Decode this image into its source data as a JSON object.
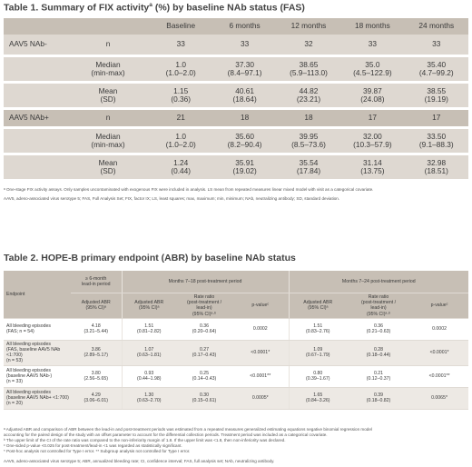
{
  "table1": {
    "title": "Table 1. Summary of FIX activity",
    "title_sup": "a",
    "title_suffix": " (%) by baseline NAb status (FAS)",
    "columns": [
      "Baseline",
      "6 months",
      "12 months",
      "18 months",
      "24 months"
    ],
    "groups": [
      {
        "label": "AAV5 NAb-",
        "n": [
          "33",
          "33",
          "32",
          "33",
          "33"
        ],
        "median_label": [
          "Median",
          "(min-max)"
        ],
        "median": [
          [
            "1.0",
            "(1.0–2.0)"
          ],
          [
            "37.30",
            "(8.4–97.1)"
          ],
          [
            "38.65",
            "(5.9–113.0)"
          ],
          [
            "35.0",
            "(4.5–122.9)"
          ],
          [
            "35.40",
            "(4.7–99.2)"
          ]
        ],
        "mean_label": [
          "Mean",
          "(SD)"
        ],
        "mean": [
          [
            "1.15",
            "(0.36)"
          ],
          [
            "40.61",
            "(18.64)"
          ],
          [
            "44.82",
            "(23.21)"
          ],
          [
            "39.87",
            "(24.08)"
          ],
          [
            "38.55",
            "(19.19)"
          ]
        ]
      },
      {
        "label": "AAV5 NAb+",
        "n": [
          "21",
          "18",
          "18",
          "17",
          "17"
        ],
        "median_label": [
          "Median",
          "(min-max)"
        ],
        "median": [
          [
            "1.0",
            "(1.0–2.0)"
          ],
          [
            "35.60",
            "(8.2–90.4)"
          ],
          [
            "39.95",
            "(8.5–73.6)"
          ],
          [
            "32.00",
            "(10.3–57.9)"
          ],
          [
            "33.50",
            "(9.1–88.3)"
          ]
        ],
        "mean_label": [
          "Mean",
          "(SD)"
        ],
        "mean": [
          [
            "1.24",
            "(0.44)"
          ],
          [
            "35.91",
            "(19.02)"
          ],
          [
            "35.54",
            "(17.84)"
          ],
          [
            "31.14",
            "(13.75)"
          ],
          [
            "32.98",
            "(18.51)"
          ]
        ]
      }
    ],
    "footnote1": "ᵃ One-stage FIX activity assays. Only samples uncontaminated with exogenous FIX were included in analysis. LS mean from repeated measures linear mixed model with visit as a categorical covariate.",
    "footnote2": "AAV5, adeno-associated virus serotype 5; FAS, Full Analysis Set; FIX, factor IX; LS, least squares; max, maximum; min, minimum; NAb, neutralizing antibody; SD, standard deviation."
  },
  "table2": {
    "title": "Table 2. HOPE-B primary endpoint (ABR) by baseline NAb status",
    "head_lead": [
      "≥ 6-month",
      "lead-in period"
    ],
    "head_p1": "Months 7–18 post-treatment period",
    "head_p2": "Months 7–24 post-treatment period",
    "endpoint_label": "Endpoint",
    "sub_lead": [
      "Adjusted ABR",
      "(95% CI)ᵃ"
    ],
    "sub_adj": [
      "Adjusted ABR",
      "(95% CI)ᵃ"
    ],
    "sub_rr": [
      "Rate ratio",
      "(post-treatment /",
      "lead-in)",
      "(95% CI)ᵃ·ᵇ"
    ],
    "sub_p": "p-valueᶜ",
    "rows": [
      {
        "label": [
          "All bleeding episodes",
          "(FAS; n = 54)"
        ],
        "lead": [
          "4.18",
          "(3.21–5.44)"
        ],
        "a1": [
          "1.51",
          "(0.81–2.82)"
        ],
        "r1": [
          "0.36",
          "(0.20–0.64)"
        ],
        "p1": "0.0002",
        "a2": [
          "1.51",
          "(0.83–2.76)"
        ],
        "r2": [
          "0.36",
          "(0.21–0.63)"
        ],
        "p2": "0.0002"
      },
      {
        "label": [
          "All bleeding episodes",
          "(FAS, baseline AAV5 NAb ˂1:700)",
          "(n = 53)"
        ],
        "lead": [
          "3.86",
          "(2.89–5.17)"
        ],
        "a1": [
          "1.07",
          "(0.63–1.81)"
        ],
        "r1": [
          "0.27",
          "(0.17–0.43)"
        ],
        "p1": "<0.0001*",
        "a2": [
          "1.09",
          "(0.67–1.79)"
        ],
        "r2": [
          "0.28",
          "(0.18–0.44)"
        ],
        "p2": "<0.0001*"
      },
      {
        "label": [
          "All bleeding episodes",
          "(baseline AAV5 NAb-)",
          "(n = 33)"
        ],
        "lead": [
          "3.80",
          "(2.56–5.65)"
        ],
        "a1": [
          "0.93",
          "(0.44–1.98)"
        ],
        "r1": [
          "0.25",
          "(0.14–0.43)"
        ],
        "p1": "<0.0001**",
        "a2": [
          "0.80",
          "(0.39–1.67)"
        ],
        "r2": [
          "0.21",
          "(0.12–0.37)"
        ],
        "p2": "<0.0001**"
      },
      {
        "label": [
          "All bleeding episodes",
          "(baseline AAV5 NAb+ ˂1:700)",
          "(n = 20)"
        ],
        "lead": [
          "4.29",
          "(3.06–6.01)"
        ],
        "a1": [
          "1.30",
          "(0.63–2.70)"
        ],
        "r1": [
          "0.30",
          "(0.15–0.61)"
        ],
        "p1": "0.0005*",
        "a2": [
          "1.65",
          "(0.84–3.26)"
        ],
        "r2": [
          "0.39",
          "(0.18–0.82)"
        ],
        "p2": "0.0065*"
      }
    ],
    "footnotes": [
      "ᵃ Adjusted ABR and comparison of ABR between the lead-in and post-treatment periods was estimated from a repeated measures generalized estimating equations negative binomial regression model",
      "accounting for the paired design of the study with an offset parameter to account for the differential collection periods. Treatment period was included as a categorical covariate.",
      "ᵇ The upper limit of the CI of the rate ratio was compared to the non-inferiority margin of 1.8. If the upper limit was <1.8, then non-inferiority was declared.",
      "ᶜ One-sided p-value <0.025 for post-treatment/lead-in <1 was regarded as statistically significant.",
      "* Post-hoc analysis not controlled for Type I error. ** Subgroup analysis not controlled for Type I error."
    ],
    "abbrev": "AAV5, adeno-associated virus serotype 5; ABR, annualized bleeding rate; CI, confidence interval; FAS, full analysis set; NAb, neutralizing antibody."
  }
}
